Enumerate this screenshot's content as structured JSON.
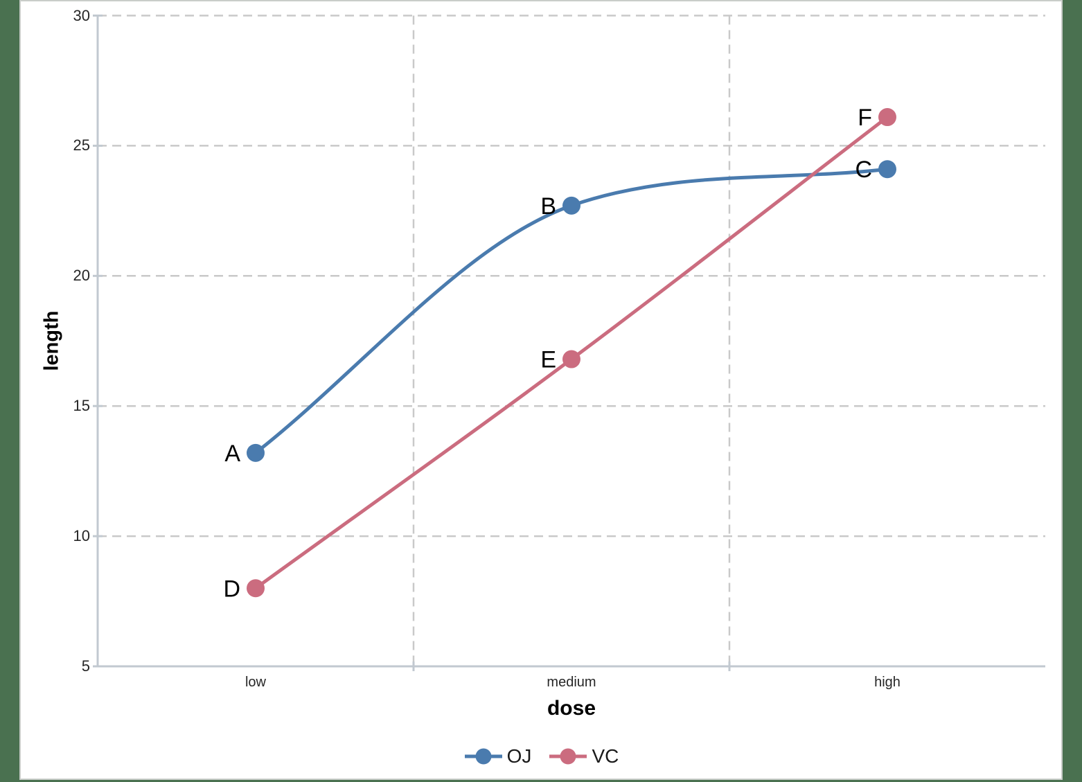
{
  "chart_data": {
    "type": "line",
    "title": "",
    "xlabel": "dose",
    "ylabel": "length",
    "categories": [
      "low",
      "medium",
      "high"
    ],
    "series": [
      {
        "name": "OJ",
        "color": "#4a7bae",
        "values": [
          13.2,
          22.7,
          24.1
        ],
        "point_labels": [
          "A",
          "B",
          "C"
        ]
      },
      {
        "name": "VC",
        "color": "#cb6c7f",
        "values": [
          8.0,
          16.8,
          26.1
        ],
        "point_labels": [
          "D",
          "E",
          "F"
        ]
      }
    ],
    "ylim": [
      5,
      30
    ],
    "yticks": [
      30,
      25,
      20,
      15,
      10,
      5
    ],
    "grid": "dashed gray horizontal lines at y ticks and vertical lines at category boundaries",
    "legend_position": "bottom-center",
    "line_style": "smoothed (OJ curve flattens between medium and high); round markers at each point with letter labels to the left"
  },
  "colors": {
    "background": "#4a7150",
    "canvas": "#ffffff",
    "gridline": "#c9c9c9",
    "axis_line": "#c2c9d0",
    "tick_text": "#262626",
    "label_text": "#000000"
  }
}
